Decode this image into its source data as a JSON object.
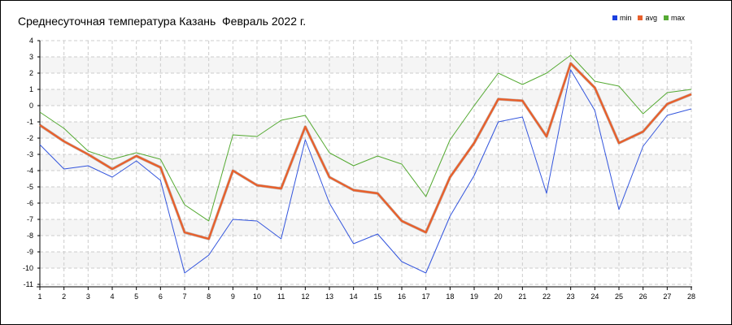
{
  "chart_data": {
    "type": "line",
    "title": "Среднесуточная температура Казань  Февраль 2022 г.",
    "x": [
      1,
      2,
      3,
      4,
      5,
      6,
      7,
      8,
      9,
      10,
      11,
      12,
      13,
      14,
      15,
      16,
      17,
      18,
      19,
      20,
      21,
      22,
      23,
      24,
      25,
      26,
      27,
      28
    ],
    "ylim": [
      -11,
      4
    ],
    "yticks": [
      4,
      3,
      2,
      1,
      0,
      -1,
      -2,
      -3,
      -4,
      -5,
      -6,
      -7,
      -8,
      -9,
      -10,
      -11
    ],
    "grid": true,
    "legend_position": "top-right",
    "series": [
      {
        "name": "min",
        "color": "#3355dd",
        "values": [
          -2.4,
          -3.9,
          -3.7,
          -4.4,
          -3.4,
          -4.6,
          -10.3,
          -9.2,
          -7.0,
          -7.1,
          -8.2,
          -2.1,
          -6.0,
          -8.5,
          -7.9,
          -9.6,
          -10.3,
          -6.8,
          -4.3,
          -1.0,
          -0.7,
          -5.4,
          2.2,
          -0.3,
          -6.4,
          -2.5,
          -0.6,
          -0.2
        ]
      },
      {
        "name": "avg",
        "color": "#e8602c",
        "values": [
          -1.2,
          -2.2,
          -3.0,
          -3.9,
          -3.1,
          -3.8,
          -7.8,
          -8.2,
          -4.0,
          -4.9,
          -5.1,
          -1.3,
          -4.4,
          -5.2,
          -5.4,
          -7.1,
          -7.8,
          -4.4,
          -2.3,
          0.4,
          0.3,
          -1.9,
          2.6,
          1.1,
          -2.3,
          -1.6,
          0.1,
          0.7
        ]
      },
      {
        "name": "max",
        "color": "#55aa33",
        "values": [
          -0.4,
          -1.4,
          -2.8,
          -3.3,
          -2.9,
          -3.3,
          -6.1,
          -7.1,
          -1.8,
          -1.9,
          -0.9,
          -0.6,
          -2.9,
          -3.7,
          -3.1,
          -3.6,
          -5.6,
          -2.1,
          0.0,
          2.0,
          1.3,
          2.0,
          3.1,
          1.5,
          1.2,
          -0.5,
          0.8,
          1.0
        ]
      }
    ]
  }
}
